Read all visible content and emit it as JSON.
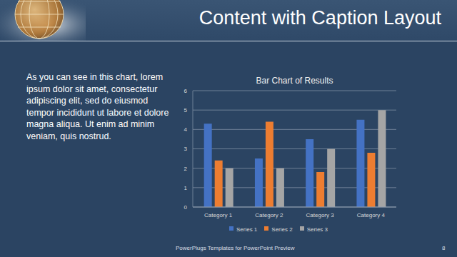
{
  "title": "Content with Caption Layout",
  "caption": "As you can see in this chart, lorem ipsum dolor sit amet, consectetur adipiscing elit, sed do eiusmod tempor incididunt ut labore et dolore magna aliqua. Ut enim ad minim veniam, quis nostrud.",
  "footer": "PowerPlugs Templates for PowerPoint Preview",
  "page_number": "8",
  "chart_data": {
    "type": "bar",
    "title": "Bar Chart of Results",
    "categories": [
      "Category 1",
      "Category 2",
      "Category 3",
      "Category 4"
    ],
    "series": [
      {
        "name": "Series 1",
        "color": "#4472c4",
        "values": [
          4.3,
          2.5,
          3.5,
          4.5
        ]
      },
      {
        "name": "Series 2",
        "color": "#ed7d31",
        "values": [
          2.4,
          4.4,
          1.8,
          2.8
        ]
      },
      {
        "name": "Series 3",
        "color": "#a5a5a5",
        "values": [
          2,
          2,
          3,
          5
        ]
      }
    ],
    "ylim": [
      0,
      6
    ],
    "yticks": [
      0,
      1,
      2,
      3,
      4,
      5,
      6
    ],
    "grid": true,
    "legend": "bottom"
  }
}
